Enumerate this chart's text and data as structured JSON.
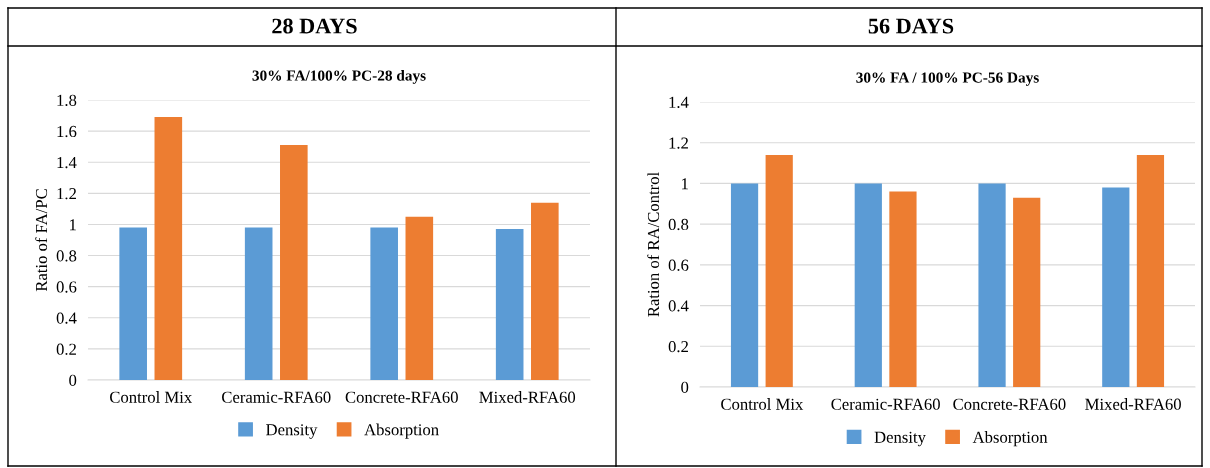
{
  "chart_data": [
    {
      "type": "bar",
      "title": "28 DAYS",
      "subtitle": "30% FA/100% PC-28 days",
      "ylabel": "Ratio of FA/PC",
      "categories": [
        "Control Mix",
        "Ceramic-RFA60",
        "Concrete-RFA60",
        "Mixed-RFA60"
      ],
      "series": [
        {
          "name": "Density",
          "color": "#5b9bd5",
          "values": [
            0.98,
            0.98,
            0.98,
            0.97
          ]
        },
        {
          "name": "Absorption",
          "color": "#ed7d31",
          "values": [
            1.69,
            1.51,
            1.05,
            1.14
          ]
        }
      ],
      "ylim": [
        0,
        1.8
      ],
      "yticks": [
        0,
        0.2,
        0.4,
        0.6,
        0.8,
        1,
        1.2,
        1.4,
        1.6,
        1.8
      ],
      "grid": "y",
      "legend": "bottom"
    },
    {
      "type": "bar",
      "title": "56 DAYS",
      "subtitle": "30% FA / 100% PC-56 Days",
      "ylabel": "Ration of RA/Control",
      "categories": [
        "Control Mix",
        "Ceramic-RFA60",
        "Concrete-RFA60",
        "Mixed-RFA60"
      ],
      "series": [
        {
          "name": "Density",
          "color": "#5b9bd5",
          "values": [
            1.0,
            1.0,
            1.0,
            0.98
          ]
        },
        {
          "name": "Absorption",
          "color": "#ed7d31",
          "values": [
            1.14,
            0.96,
            0.93,
            1.14
          ]
        }
      ],
      "ylim": [
        0,
        1.4
      ],
      "yticks": [
        0,
        0.2,
        0.4,
        0.6,
        0.8,
        1,
        1.2,
        1.4
      ],
      "grid": "y",
      "legend": "bottom"
    }
  ]
}
